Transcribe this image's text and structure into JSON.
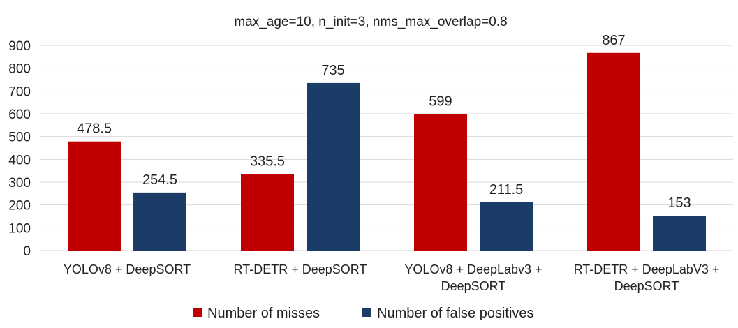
{
  "chart_data": {
    "type": "bar",
    "title": "max_age=10, n_init=3, nms_max_overlap=0.8",
    "categories": [
      [
        "YOLOv8 + DeepSORT"
      ],
      [
        "RT-DETR + DeepSORT"
      ],
      [
        "YOLOv8 + DeepLabv3 +",
        "DeepSORT"
      ],
      [
        "RT-DETR + DeepLabV3 +",
        "DeepSORT"
      ]
    ],
    "series": [
      {
        "name": "Number of misses",
        "color": "#C00000",
        "values": [
          478.5,
          335.5,
          599,
          867
        ]
      },
      {
        "name": "Number of false positives",
        "color": "#1A3C66",
        "values": [
          254.5,
          735,
          211.5,
          153
        ]
      }
    ],
    "ylim": [
      0,
      900
    ],
    "yticks": [
      0,
      100,
      200,
      300,
      400,
      500,
      600,
      700,
      800,
      900
    ],
    "grid": true,
    "legend": "bottom"
  }
}
